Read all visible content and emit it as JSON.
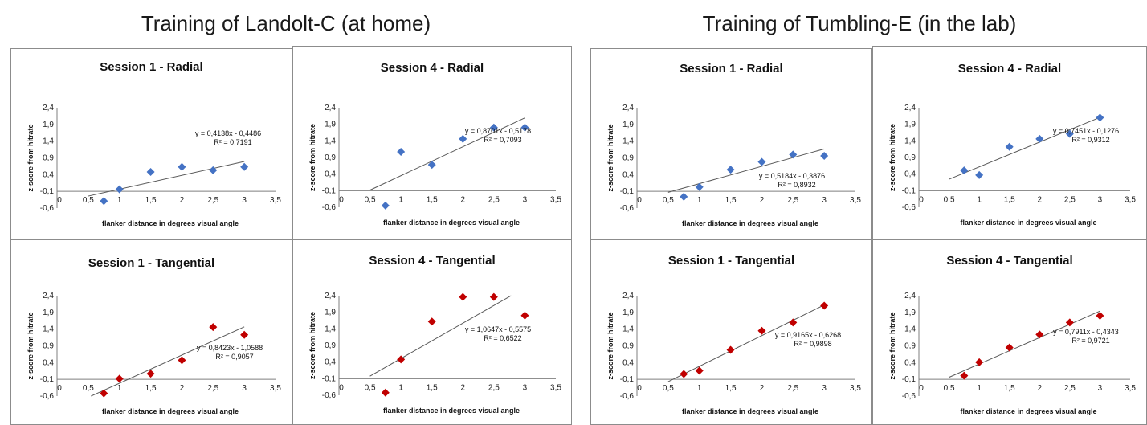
{
  "groups": [
    {
      "title": "Training of Landolt-C (at home)"
    },
    {
      "title": "Training of Tumbling-E (in the lab)"
    }
  ],
  "colors": {
    "radial": "#4472c4",
    "tangential": "#c00000",
    "trendline": "#595959"
  },
  "chart_data": [
    {
      "type": "scatter",
      "title": "Session 1 - Radial",
      "xlabel": "flanker distance in degrees visual angle",
      "ylabel": "z-score from hitrate",
      "xlim": [
        0,
        3.5
      ],
      "ylim": [
        -0.6,
        2.4
      ],
      "x_ticks": [
        "0",
        "0,5",
        "1",
        "1,5",
        "2",
        "2,5",
        "3",
        "3,5"
      ],
      "y_ticks": [
        "-0,6",
        "-0,1",
        "0,4",
        "0,9",
        "1,4",
        "1,9",
        "2,4"
      ],
      "x": [
        0.75,
        1,
        1.5,
        2,
        2.5,
        3
      ],
      "y": [
        -0.39,
        -0.04,
        0.48,
        0.63,
        0.53,
        0.63
      ],
      "trendline": {
        "slope": 0.4138,
        "intercept": -0.4486
      },
      "equation": "y = 0,4138x - 0,4486",
      "r2": "R² = 0,7191",
      "series_color": "radial"
    },
    {
      "type": "scatter",
      "title": "Session 4 - Radial",
      "xlabel": "flanker distance in degrees visual angle",
      "ylabel": "z-score from hitrate",
      "xlim": [
        0,
        3.5
      ],
      "ylim": [
        -0.6,
        2.4
      ],
      "x_ticks": [
        "0",
        "0,5",
        "1",
        "1,5",
        "2",
        "2,5",
        "3",
        "3,5"
      ],
      "y_ticks": [
        "-0,6",
        "-0,1",
        "0,4",
        "0,9",
        "1,4",
        "1,9",
        "2,4"
      ],
      "x": [
        0.75,
        1,
        1.5,
        2,
        2.5,
        3
      ],
      "y": [
        -0.55,
        1.07,
        0.68,
        1.46,
        1.8,
        1.8
      ],
      "trendline": {
        "slope": 0.8701,
        "intercept": -0.5178
      },
      "equation": "y = 0,8701x - 0,5178",
      "r2": "R² = 0,7093",
      "series_color": "radial"
    },
    {
      "type": "scatter",
      "title": "Session 1 - Radial",
      "xlabel": "flanker distance in degrees visual angle",
      "ylabel": "z-score from hitrate",
      "xlim": [
        0,
        3.5
      ],
      "ylim": [
        -0.6,
        2.4
      ],
      "x_ticks": [
        "0",
        "0,5",
        "1",
        "1,5",
        "2",
        "2,5",
        "3",
        "3,5"
      ],
      "y_ticks": [
        "-0,6",
        "-0,1",
        "0,4",
        "0,9",
        "1,4",
        "1,9",
        "2,4"
      ],
      "x": [
        0.75,
        1,
        1.5,
        2,
        2.5,
        3
      ],
      "y": [
        -0.26,
        0.03,
        0.55,
        0.78,
        1.0,
        0.96
      ],
      "trendline": {
        "slope": 0.5184,
        "intercept": -0.3876
      },
      "equation": "y = 0,5184x - 0,3876",
      "r2": "R² = 0,8932",
      "series_color": "radial"
    },
    {
      "type": "scatter",
      "title": "Session 4 - Radial",
      "xlabel": "flanker distance in degrees visual angle",
      "ylabel": "z-score from hitrate",
      "xlim": [
        0,
        3.5
      ],
      "ylim": [
        -0.6,
        2.4
      ],
      "x_ticks": [
        "0",
        "0,5",
        "1",
        "1,5",
        "2",
        "2,5",
        "3",
        "3,5"
      ],
      "y_ticks": [
        "-0,6",
        "-0,1",
        "0,4",
        "0,9",
        "1,4",
        "1,9",
        "2,4"
      ],
      "x": [
        0.75,
        1,
        1.5,
        2,
        2.5,
        3
      ],
      "y": [
        0.51,
        0.37,
        1.22,
        1.46,
        1.61,
        2.1
      ],
      "trendline": {
        "slope": 0.7451,
        "intercept": -0.1276
      },
      "equation": "y = 0,7451x - 0,1276",
      "r2": "R² = 0,9312",
      "series_color": "radial"
    },
    {
      "type": "scatter",
      "title": "Session 1 - Tangential",
      "xlabel": "flanker distance in degrees visual angle",
      "ylabel": "z-score from hitrate",
      "xlim": [
        0,
        3.5
      ],
      "ylim": [
        -0.6,
        2.4
      ],
      "x_ticks": [
        "0",
        "0,5",
        "1",
        "1,5",
        "2",
        "2,5",
        "3",
        "3,5"
      ],
      "y_ticks": [
        "-0,6",
        "-0,1",
        "0,4",
        "0,9",
        "1,4",
        "1,9",
        "2,4"
      ],
      "x": [
        0.75,
        1,
        1.5,
        2,
        2.5,
        3
      ],
      "y": [
        -0.52,
        -0.08,
        0.07,
        0.47,
        1.46,
        1.23
      ],
      "trendline": {
        "slope": 0.8423,
        "intercept": -1.0588
      },
      "equation": "y = 0,8423x - 1,0588",
      "r2": "R² = 0,9057",
      "series_color": "tangential"
    },
    {
      "type": "scatter",
      "title": "Session 4 - Tangential",
      "xlabel": "flanker distance in degrees visual angle",
      "ylabel": "z-score from hitrate",
      "xlim": [
        0,
        3.5
      ],
      "ylim": [
        -0.6,
        2.4
      ],
      "x_ticks": [
        "0",
        "0,5",
        "1",
        "1,5",
        "2",
        "2,5",
        "3",
        "3,5"
      ],
      "y_ticks": [
        "-0,6",
        "-0,1",
        "0,4",
        "0,9",
        "1,4",
        "1,9",
        "2,4"
      ],
      "x": [
        0.75,
        1,
        1.5,
        2,
        2.5,
        3
      ],
      "y": [
        -0.52,
        0.48,
        1.62,
        2.36,
        2.36,
        1.8
      ],
      "trendline": {
        "slope": 1.0647,
        "intercept": -0.5575
      },
      "equation": "y = 1,0647x - 0,5575",
      "r2": "R² = 0,6522",
      "series_color": "tangential"
    },
    {
      "type": "scatter",
      "title": "Session 1 - Tangential",
      "xlabel": "flanker distance in degrees visual angle",
      "ylabel": "z-score from hitrate",
      "xlim": [
        0,
        3.5
      ],
      "ylim": [
        -0.6,
        2.4
      ],
      "x_ticks": [
        "0",
        "0,5",
        "1",
        "1,5",
        "2",
        "2,5",
        "3",
        "3,5"
      ],
      "y_ticks": [
        "-0,6",
        "-0,1",
        "0,4",
        "0,9",
        "1,4",
        "1,9",
        "2,4"
      ],
      "x": [
        0.75,
        1,
        1.5,
        2,
        2.5,
        3
      ],
      "y": [
        0.06,
        0.16,
        0.78,
        1.35,
        1.6,
        2.1
      ],
      "trendline": {
        "slope": 0.9165,
        "intercept": -0.6268
      },
      "equation": "y = 0,9165x - 0,6268",
      "r2": "R² = 0,9898",
      "series_color": "tangential"
    },
    {
      "type": "scatter",
      "title": "Session 4 - Tangential",
      "xlabel": "flanker distance in degrees visual angle",
      "ylabel": "z-score from hitrate",
      "xlim": [
        0,
        3.5
      ],
      "ylim": [
        -0.6,
        2.4
      ],
      "x_ticks": [
        "0",
        "0,5",
        "1",
        "1,5",
        "2",
        "2,5",
        "3",
        "3,5"
      ],
      "y_ticks": [
        "-0,6",
        "-0,1",
        "0,4",
        "0,9",
        "1,4",
        "1,9",
        "2,4"
      ],
      "x": [
        0.75,
        1,
        1.5,
        2,
        2.5,
        3
      ],
      "y": [
        0.01,
        0.41,
        0.85,
        1.24,
        1.6,
        1.8
      ],
      "trendline": {
        "slope": 0.7911,
        "intercept": -0.4343
      },
      "equation": "y = 0,7911x - 0,4343",
      "r2": "R² = 0,9721",
      "series_color": "tangential"
    }
  ]
}
